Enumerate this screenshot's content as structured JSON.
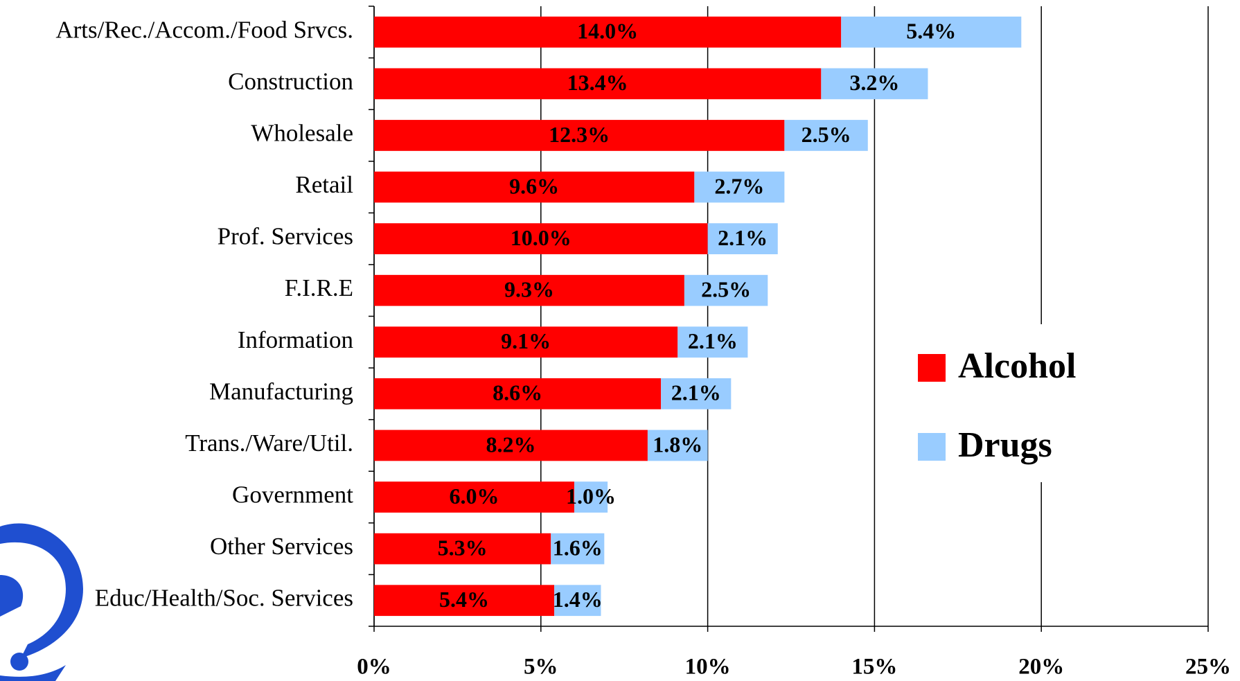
{
  "chart_data": {
    "type": "stacked_barh",
    "categories": [
      "Arts/Rec./Accom./Food Srvcs.",
      "Construction",
      "Wholesale",
      "Retail",
      "Prof. Services",
      "F.I.R.E",
      "Information",
      "Manufacturing",
      "Trans./Ware/Util.",
      "Government",
      "Other Services",
      "Educ/Health/Soc. Services"
    ],
    "series": [
      {
        "name": "Alcohol",
        "color": "#ff0000",
        "values": [
          14.0,
          13.4,
          12.3,
          9.6,
          10.0,
          9.3,
          9.1,
          8.6,
          8.2,
          6.0,
          5.3,
          5.4
        ],
        "value_labels": [
          "14.0%",
          "13.4%",
          "12.3%",
          "9.6%",
          "10.0%",
          "9.3%",
          "9.1%",
          "8.6%",
          "8.2%",
          "6.0%",
          "5.3%",
          "5.4%"
        ]
      },
      {
        "name": "Drugs",
        "color": "#99ccff",
        "values": [
          5.4,
          3.2,
          2.5,
          2.7,
          2.1,
          2.5,
          2.1,
          2.1,
          1.8,
          1.0,
          1.6,
          1.4
        ],
        "value_labels": [
          "5.4%",
          "3.2%",
          "2.5%",
          "2.7%",
          "2.1%",
          "2.5%",
          "2.1%",
          "2.1%",
          "1.8%",
          "1.0%",
          "1.6%",
          "1.4%"
        ]
      }
    ],
    "xlim": [
      0,
      25
    ],
    "xticks": [
      {
        "value": 0,
        "label": "0%"
      },
      {
        "value": 5,
        "label": "5%"
      },
      {
        "value": 10,
        "label": "10%"
      },
      {
        "value": 15,
        "label": "15%"
      },
      {
        "value": 20,
        "label": "20%"
      },
      {
        "value": 25,
        "label": "25%"
      }
    ],
    "grid": true,
    "legend": "right"
  }
}
